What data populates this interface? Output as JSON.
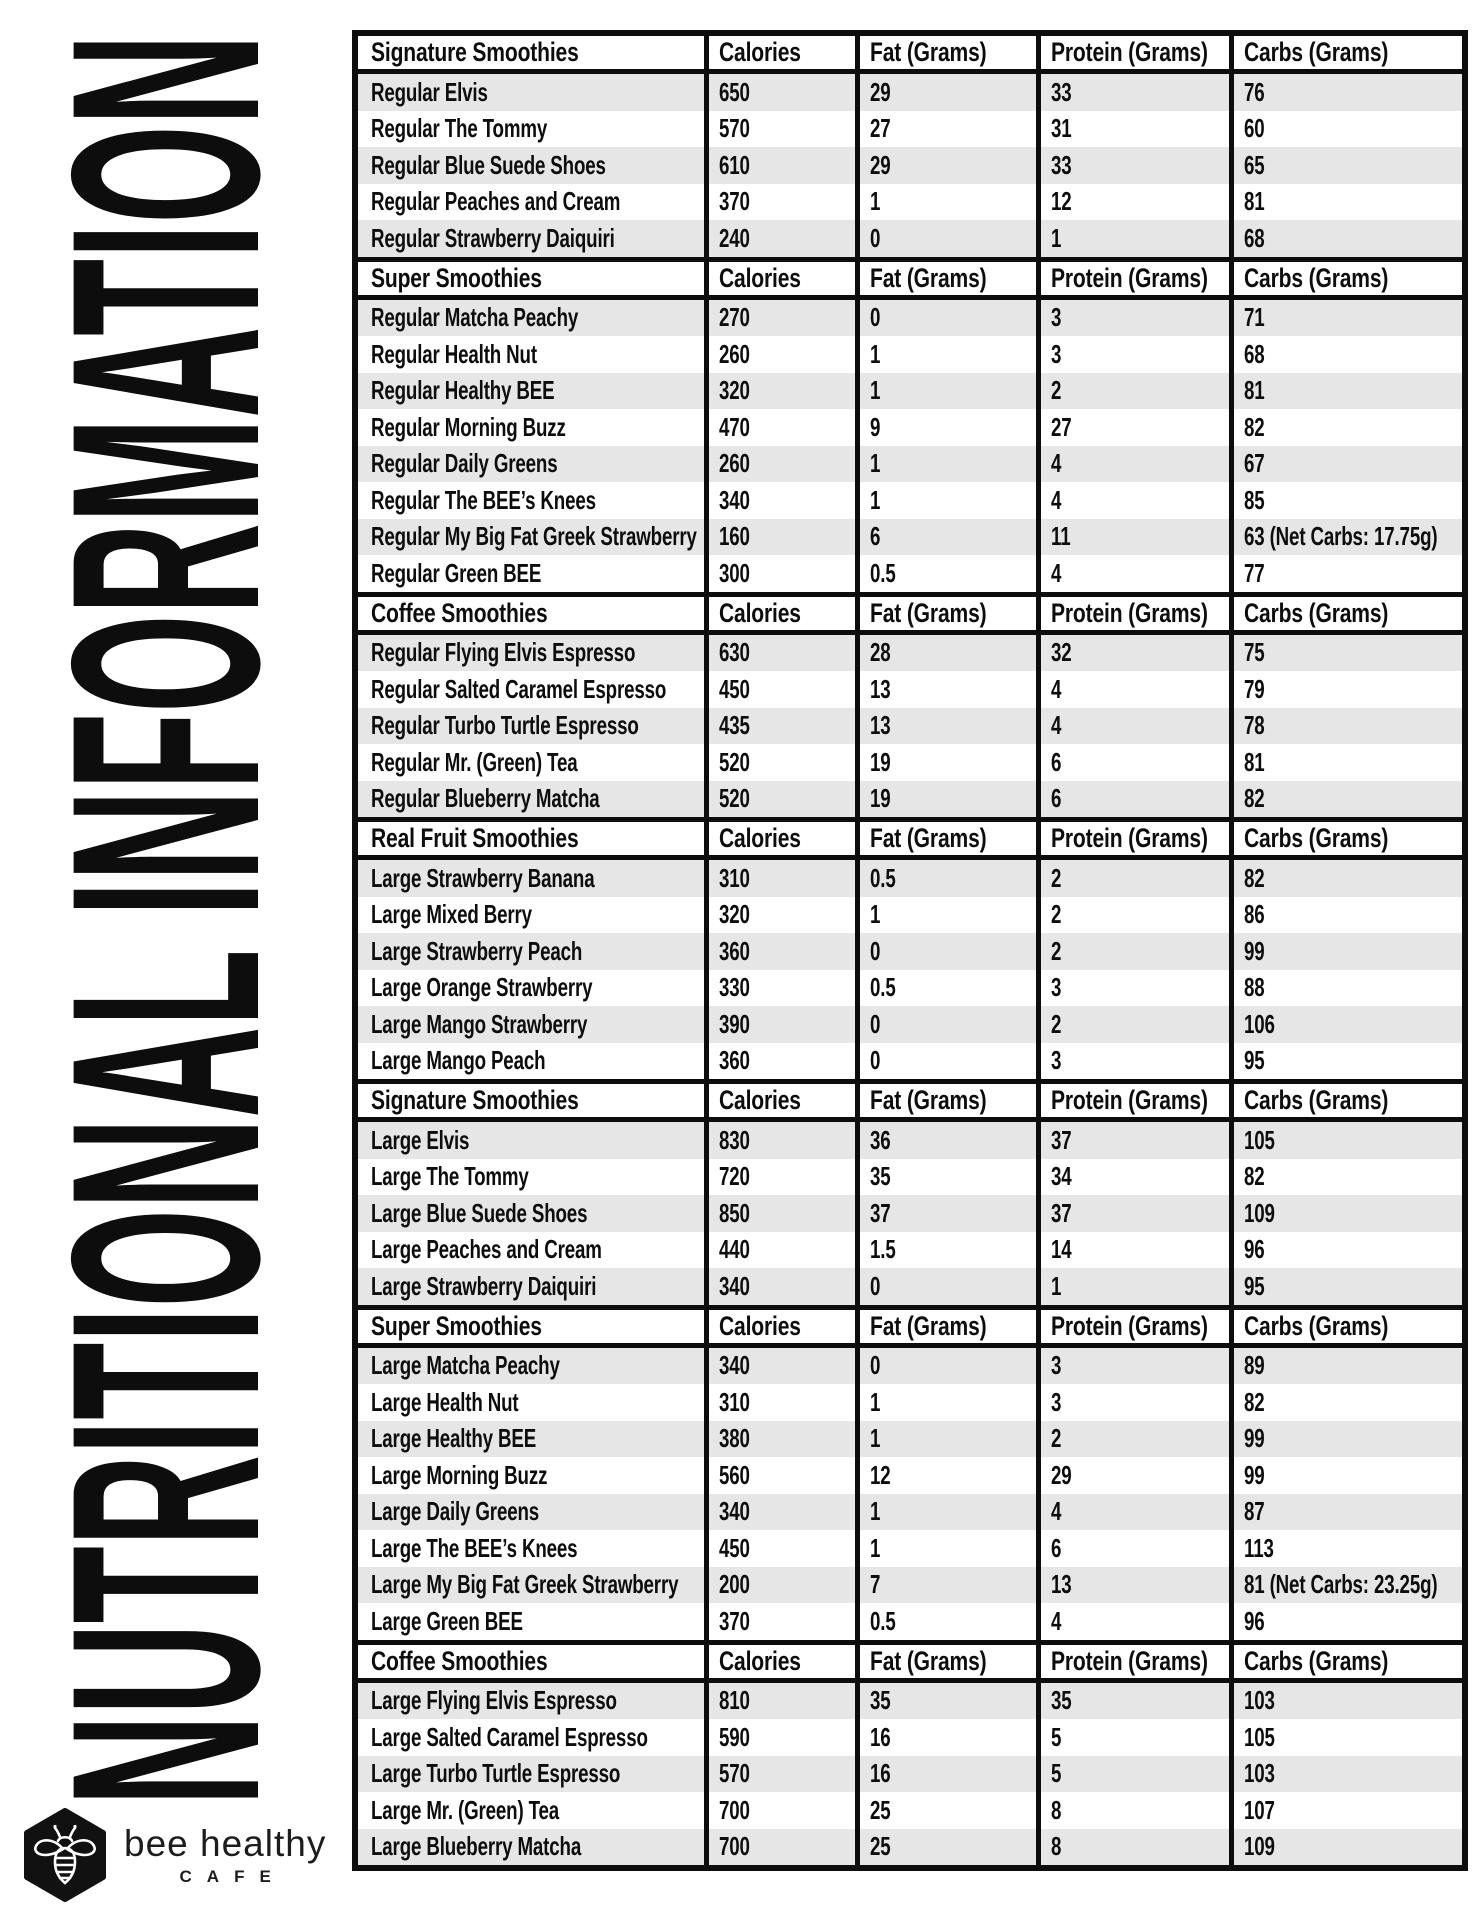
{
  "page_title": "NUTRITIONAL INFORMATION",
  "logo": {
    "brand": "bee healthy",
    "sub": "CAFE"
  },
  "colors": {
    "ink": "#0d0d0d",
    "row_alt": "#e6e6e6",
    "background": "#ffffff"
  },
  "table": {
    "columns": [
      "Calories",
      "Fat (Grams)",
      "Protein (Grams)",
      "Carbs (Grams)"
    ],
    "sections": [
      {
        "label": "Signature Smoothies",
        "rows": [
          {
            "item": "Regular Elvis",
            "values": [
              "650",
              "29",
              "33",
              "76"
            ]
          },
          {
            "item": "Regular The Tommy",
            "values": [
              "570",
              "27",
              "31",
              "60"
            ]
          },
          {
            "item": "Regular Blue Suede Shoes",
            "values": [
              "610",
              "29",
              "33",
              "65"
            ]
          },
          {
            "item": "Regular Peaches and Cream",
            "values": [
              "370",
              "1",
              "12",
              "81"
            ]
          },
          {
            "item": "Regular Strawberry Daiquiri",
            "values": [
              "240",
              "0",
              "1",
              "68"
            ]
          }
        ]
      },
      {
        "label": "Super Smoothies",
        "rows": [
          {
            "item": "Regular Matcha Peachy",
            "values": [
              "270",
              "0",
              "3",
              "71"
            ]
          },
          {
            "item": "Regular Health Nut",
            "values": [
              "260",
              "1",
              "3",
              "68"
            ]
          },
          {
            "item": "Regular Healthy BEE",
            "values": [
              "320",
              "1",
              "2",
              "81"
            ]
          },
          {
            "item": "Regular Morning Buzz",
            "values": [
              "470",
              "9",
              "27",
              "82"
            ]
          },
          {
            "item": "Regular Daily Greens",
            "values": [
              "260",
              "1",
              "4",
              "67"
            ]
          },
          {
            "item": "Regular The BEE’s Knees",
            "values": [
              "340",
              "1",
              "4",
              "85"
            ]
          },
          {
            "item": "Regular My Big Fat Greek Strawberry",
            "values": [
              "160",
              "6",
              "11",
              "63 (Net Carbs: 17.75g)"
            ]
          },
          {
            "item": "Regular Green BEE",
            "values": [
              "300",
              "0.5",
              "4",
              "77"
            ]
          }
        ]
      },
      {
        "label": "Coffee Smoothies",
        "rows": [
          {
            "item": "Regular Flying Elvis Espresso",
            "values": [
              "630",
              "28",
              "32",
              "75"
            ]
          },
          {
            "item": "Regular Salted Caramel Espresso",
            "values": [
              "450",
              "13",
              "4",
              "79"
            ]
          },
          {
            "item": "Regular Turbo Turtle Espresso",
            "values": [
              "435",
              "13",
              "4",
              "78"
            ]
          },
          {
            "item": "Regular Mr. (Green) Tea",
            "values": [
              "520",
              "19",
              "6",
              "81"
            ]
          },
          {
            "item": "Regular Blueberry Matcha",
            "values": [
              "520",
              "19",
              "6",
              "82"
            ]
          }
        ]
      },
      {
        "label": "Real Fruit Smoothies",
        "rows": [
          {
            "item": "Large Strawberry Banana",
            "values": [
              "310",
              "0.5",
              "2",
              "82"
            ]
          },
          {
            "item": "Large Mixed Berry",
            "values": [
              "320",
              "1",
              "2",
              "86"
            ]
          },
          {
            "item": "Large Strawberry Peach",
            "values": [
              "360",
              "0",
              "2",
              "99"
            ]
          },
          {
            "item": "Large Orange Strawberry",
            "values": [
              "330",
              "0.5",
              "3",
              "88"
            ]
          },
          {
            "item": "Large Mango Strawberry",
            "values": [
              "390",
              "0",
              "2",
              "106"
            ]
          },
          {
            "item": "Large Mango Peach",
            "values": [
              "360",
              "0",
              "3",
              "95"
            ]
          }
        ]
      },
      {
        "label": "Signature Smoothies",
        "rows": [
          {
            "item": "Large Elvis",
            "values": [
              "830",
              "36",
              "37",
              "105"
            ]
          },
          {
            "item": "Large The Tommy",
            "values": [
              "720",
              "35",
              "34",
              "82"
            ]
          },
          {
            "item": "Large Blue Suede Shoes",
            "values": [
              "850",
              "37",
              "37",
              "109"
            ]
          },
          {
            "item": "Large Peaches and Cream",
            "values": [
              "440",
              "1.5",
              "14",
              "96"
            ]
          },
          {
            "item": "Large Strawberry Daiquiri",
            "values": [
              "340",
              "0",
              "1",
              "95"
            ]
          }
        ]
      },
      {
        "label": "Super Smoothies",
        "rows": [
          {
            "item": "Large Matcha Peachy",
            "values": [
              "340",
              "0",
              "3",
              "89"
            ]
          },
          {
            "item": "Large Health Nut",
            "values": [
              "310",
              "1",
              "3",
              "82"
            ]
          },
          {
            "item": "Large Healthy BEE",
            "values": [
              "380",
              "1",
              "2",
              "99"
            ]
          },
          {
            "item": "Large Morning Buzz",
            "values": [
              "560",
              "12",
              "29",
              "99"
            ]
          },
          {
            "item": "Large Daily Greens",
            "values": [
              "340",
              "1",
              "4",
              "87"
            ]
          },
          {
            "item": "Large The BEE’s Knees",
            "values": [
              "450",
              "1",
              "6",
              "113"
            ]
          },
          {
            "item": "Large My Big Fat Greek Strawberry",
            "values": [
              "200",
              "7",
              "13",
              "81 (Net Carbs: 23.25g)"
            ]
          },
          {
            "item": "Large Green BEE",
            "values": [
              "370",
              "0.5",
              "4",
              "96"
            ]
          }
        ]
      },
      {
        "label": "Coffee Smoothies",
        "rows": [
          {
            "item": "Large Flying Elvis Espresso",
            "values": [
              "810",
              "35",
              "35",
              "103"
            ]
          },
          {
            "item": "Large Salted Caramel Espresso",
            "values": [
              "590",
              "16",
              "5",
              "105"
            ]
          },
          {
            "item": "Large Turbo Turtle Espresso",
            "values": [
              "570",
              "16",
              "5",
              "103"
            ]
          },
          {
            "item": "Large Mr. (Green) Tea",
            "values": [
              "700",
              "25",
              "8",
              "107"
            ]
          },
          {
            "item": "Large Blueberry Matcha",
            "values": [
              "700",
              "25",
              "8",
              "109"
            ]
          }
        ]
      }
    ]
  }
}
